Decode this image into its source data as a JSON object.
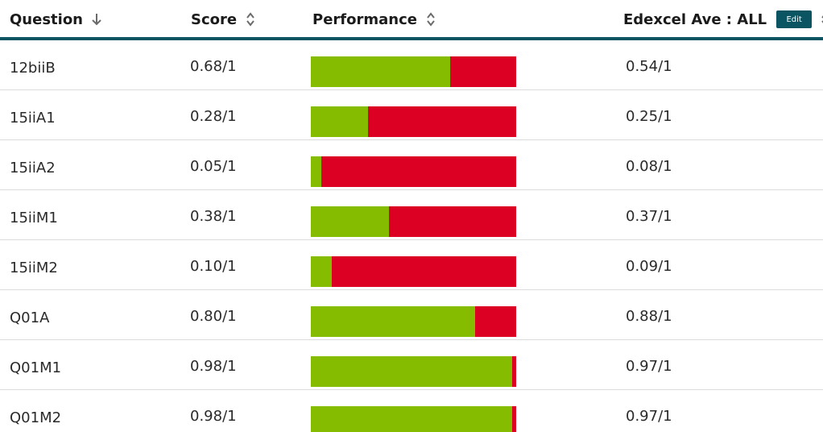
{
  "header": {
    "question_label": "Question",
    "score_label": "Score",
    "performance_label": "Performance",
    "average_label": "Edexcel Ave : ALL",
    "edit_label": "Edit",
    "question_sort_icon": "arrow-down-icon",
    "sort_icon": "sort-updown-icon"
  },
  "colors": {
    "header_rule": "#0b5563",
    "bar_correct": "#86bc00",
    "bar_incorrect": "#dc0022"
  },
  "rows": [
    {
      "question": "12biiB",
      "score": "0.68/1",
      "performance": 0.68,
      "average": "0.54/1"
    },
    {
      "question": "15iiA1",
      "score": "0.28/1",
      "performance": 0.28,
      "average": "0.25/1"
    },
    {
      "question": "15iiA2",
      "score": "0.05/1",
      "performance": 0.05,
      "average": "0.08/1"
    },
    {
      "question": "15iiM1",
      "score": "0.38/1",
      "performance": 0.38,
      "average": "0.37/1"
    },
    {
      "question": "15iiM2",
      "score": "0.10/1",
      "performance": 0.1,
      "average": "0.09/1"
    },
    {
      "question": "Q01A",
      "score": "0.80/1",
      "performance": 0.8,
      "average": "0.88/1"
    },
    {
      "question": "Q01M1",
      "score": "0.98/1",
      "performance": 0.98,
      "average": "0.97/1"
    },
    {
      "question": "Q01M2",
      "score": "0.98/1",
      "performance": 0.98,
      "average": "0.97/1"
    }
  ]
}
